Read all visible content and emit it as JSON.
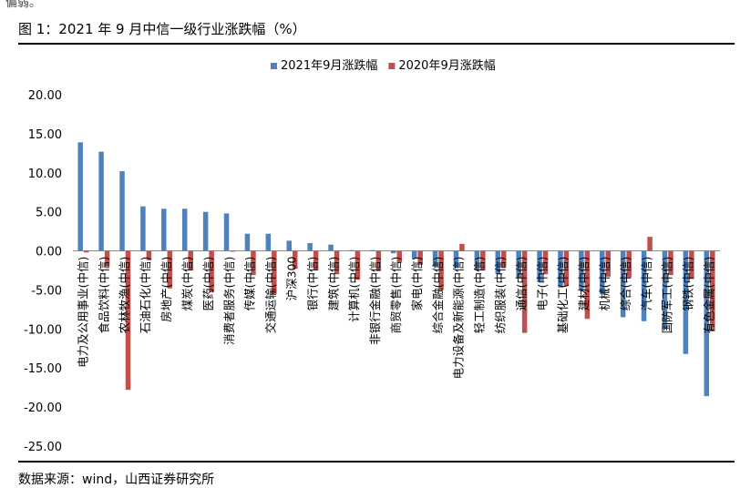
{
  "header": {
    "top_note": "偏弱。",
    "figure_title": "图 1：2021 年 9 月中信一级行业涨跌幅（%）"
  },
  "footer": {
    "source": "数据来源：wind，山西证券研究所"
  },
  "chart_data": {
    "type": "bar",
    "title": "",
    "xlabel": "",
    "ylabel": "",
    "ylim": [
      -25,
      20
    ],
    "yticks": [
      20,
      15,
      10,
      5,
      0,
      -5,
      -10,
      -15,
      -20,
      -25
    ],
    "ytick_labels": [
      "20.00",
      "15.00",
      "10.00",
      "5.00",
      "0.00",
      "-5.00",
      "-10.00",
      "-15.00",
      "-20.00",
      "-25.00"
    ],
    "grid": false,
    "legend_position": "top",
    "categories": [
      "电力及公用事业(中信)",
      "食品饮料(中信)",
      "农林牧渔(中信)",
      "石油石化(中信)",
      "房地产(中信)",
      "煤炭(中信)",
      "医药(中信)",
      "消费者服务(中信)",
      "传媒(中信)",
      "交通运输(中信)",
      "沪深300",
      "银行(中信)",
      "建筑(中信)",
      "计算机(中信)",
      "非银行金融(中信)",
      "商贸零售(中信)",
      "家电(中信)",
      "综合金融(中信)",
      "电力设备及新能源(中信)",
      "轻工制造(中信)",
      "纺织服装(中信)",
      "通信(中信)",
      "电子(中信)",
      "基础化工(中信)",
      "建材(中信)",
      "机械(中信)",
      "综合(中信)",
      "汽车(中信)",
      "国防军工(中信)",
      "钢铁(中信)",
      "有色金属(中信)"
    ],
    "series": [
      {
        "name": "2021年9月涨跌幅",
        "color": "#4f81bd",
        "values": [
          13.9,
          12.7,
          10.2,
          5.7,
          5.4,
          5.4,
          5.0,
          4.8,
          2.2,
          2.2,
          1.3,
          1.0,
          0.8,
          0.1,
          0.1,
          -0.3,
          -1.0,
          -2.0,
          -2.2,
          -2.5,
          -3.0,
          -3.5,
          -4.0,
          -4.7,
          -5.0,
          -5.5,
          -8.5,
          -9.0,
          -10.0,
          -13.2,
          -18.6
        ]
      },
      {
        "name": "2020年9月涨跌幅",
        "color": "#c0504d",
        "values": [
          -0.2,
          -2.0,
          -17.8,
          -1.2,
          -4.8,
          -2.5,
          -5.3,
          -0.1,
          -3.1,
          -5.5,
          -2.3,
          -2.5,
          -3.0,
          -3.7,
          -2.6,
          -1.5,
          -1.8,
          -5.0,
          0.9,
          -2.5,
          -2.1,
          -10.5,
          -3.0,
          -4.5,
          -8.7,
          -3.3,
          -3.4,
          1.8,
          -3.1,
          -3.6,
          -10.3
        ]
      }
    ]
  }
}
